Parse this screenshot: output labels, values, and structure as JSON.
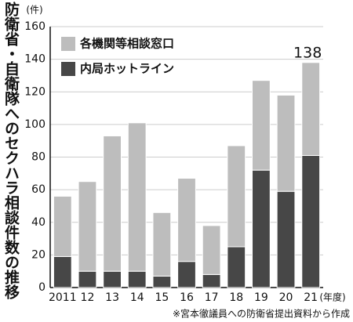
{
  "chart_data": {
    "type": "stacked_bar",
    "title": "防衛省・自衛隊へのセクハラ相談件数の推移",
    "y_unit": "(件)",
    "x_unit": "(年度)",
    "note": "※宮本徹議員への防衛省提出資料から作成",
    "annotation": "138",
    "categories": [
      "2011",
      "12",
      "13",
      "14",
      "15",
      "16",
      "17",
      "18",
      "19",
      "20",
      "21"
    ],
    "series": [
      {
        "name": "内局ホットライン",
        "color": "#474747",
        "values": [
          19,
          10,
          10,
          10,
          7,
          16,
          8,
          25,
          72,
          59,
          81
        ]
      },
      {
        "name": "各機関等相談窓口",
        "color": "#bdbdbd",
        "values": [
          37,
          55,
          83,
          91,
          39,
          51,
          30,
          62,
          55,
          59,
          57
        ]
      }
    ],
    "ylim": [
      0,
      160
    ],
    "yticks": [
      0,
      20,
      40,
      60,
      80,
      100,
      120,
      140,
      160
    ],
    "grid": true
  }
}
